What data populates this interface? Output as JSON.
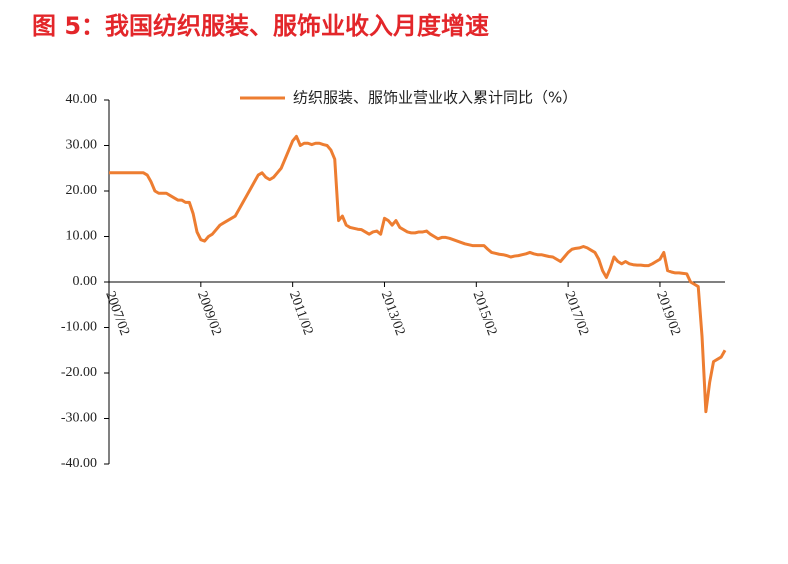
{
  "chart_data": {
    "type": "line",
    "title": "图 5：我国纺织服装、服饰业收入月度增速",
    "x": [
      "2007/02",
      "2007/03",
      "2007/04",
      "2007/05",
      "2007/06",
      "2007/07",
      "2007/08",
      "2007/09",
      "2007/10",
      "2007/11",
      "2007/12",
      "2008/01",
      "2008/02",
      "2008/03",
      "2008/04",
      "2008/05",
      "2008/06",
      "2008/07",
      "2008/08",
      "2008/09",
      "2008/10",
      "2008/11",
      "2008/12",
      "2009/01",
      "2009/02",
      "2009/03",
      "2009/04",
      "2009/05",
      "2009/06",
      "2009/07",
      "2009/08",
      "2009/09",
      "2009/10",
      "2009/11",
      "2009/12",
      "2010/01",
      "2010/02",
      "2010/03",
      "2010/04",
      "2010/05",
      "2010/06",
      "2010/07",
      "2010/08",
      "2010/09",
      "2010/10",
      "2010/11",
      "2010/12",
      "2011/01",
      "2011/02",
      "2011/03",
      "2011/04",
      "2011/05",
      "2011/06",
      "2011/07",
      "2011/08",
      "2011/09",
      "2011/10",
      "2011/11",
      "2011/12",
      "2012/01",
      "2012/02",
      "2012/03",
      "2012/04",
      "2012/05",
      "2012/06",
      "2012/07",
      "2012/08",
      "2012/09",
      "2012/10",
      "2012/11",
      "2012/12",
      "2013/01",
      "2013/02",
      "2013/03",
      "2013/04",
      "2013/05",
      "2013/06",
      "2013/07",
      "2013/08",
      "2013/09",
      "2013/10",
      "2013/11",
      "2013/12",
      "2014/01",
      "2014/02",
      "2014/03",
      "2014/04",
      "2014/05",
      "2014/06",
      "2014/07",
      "2014/08",
      "2014/09",
      "2014/10",
      "2014/11",
      "2014/12",
      "2015/01",
      "2015/02",
      "2015/03",
      "2015/04",
      "2015/05",
      "2015/06",
      "2015/07",
      "2015/08",
      "2015/09",
      "2015/10",
      "2015/11",
      "2015/12",
      "2016/01",
      "2016/02",
      "2016/03",
      "2016/04",
      "2016/05",
      "2016/06",
      "2016/07",
      "2016/08",
      "2016/09",
      "2016/10",
      "2016/11",
      "2016/12",
      "2017/01",
      "2017/02",
      "2017/03",
      "2017/04",
      "2017/05",
      "2017/06",
      "2017/07",
      "2017/08",
      "2017/09",
      "2017/10",
      "2017/11",
      "2017/12",
      "2018/01",
      "2018/02",
      "2018/03",
      "2018/04",
      "2018/05",
      "2018/06",
      "2018/07",
      "2018/08",
      "2018/09",
      "2018/10",
      "2018/11",
      "2018/12",
      "2019/01",
      "2019/02",
      "2019/03",
      "2019/04",
      "2019/05",
      "2019/06",
      "2019/07",
      "2019/08",
      "2019/09",
      "2019/10",
      "2019/11",
      "2019/12",
      "2020/01",
      "2020/02",
      "2020/03",
      "2020/04",
      "2020/05",
      "2020/06",
      "2020/07"
    ],
    "xticks": [
      "2007/02",
      "2009/02",
      "2011/02",
      "2013/02",
      "2015/02",
      "2017/02",
      "2019/02"
    ],
    "series": [
      {
        "name": "纺织服装、服饰业营业收入累计同比（%）",
        "color": "#ed7d31",
        "values": [
          24,
          24,
          24,
          24,
          24,
          24,
          24,
          24,
          24,
          24,
          23.5,
          22,
          20,
          19.5,
          19.5,
          19.5,
          19,
          18.5,
          18,
          18,
          17.5,
          17.5,
          15,
          11,
          9.3,
          9,
          10,
          10.5,
          11.5,
          12.5,
          13,
          13.5,
          14,
          14.5,
          16,
          17.5,
          19,
          20.5,
          22,
          23.5,
          24,
          23,
          22.5,
          23,
          24,
          25,
          27,
          29,
          31,
          32,
          30,
          30.5,
          30.5,
          30.2,
          30.5,
          30.5,
          30.2,
          30,
          29,
          27,
          13.5,
          14.5,
          12.5,
          12,
          11.8,
          11.6,
          11.5,
          11,
          10.5,
          11,
          11.2,
          10.5,
          14,
          13.5,
          12.5,
          13.5,
          12,
          11.5,
          11,
          10.8,
          10.8,
          11,
          11,
          11.2,
          10.5,
          10,
          9.5,
          9.8,
          9.8,
          9.6,
          9.3,
          9,
          8.7,
          8.4,
          8.2,
          8,
          8,
          8,
          8,
          7.2,
          6.5,
          6.3,
          6.1,
          6,
          5.8,
          5.5,
          5.7,
          5.8,
          6,
          6.2,
          6.5,
          6.2,
          6,
          6,
          5.8,
          5.6,
          5.5,
          5,
          4.5,
          5.5,
          6.5,
          7.2,
          7.4,
          7.5,
          7.8,
          7.5,
          7,
          6.5,
          5,
          2.5,
          1,
          3,
          5.5,
          4.5,
          4,
          4.5,
          4,
          3.8,
          3.7,
          3.7,
          3.6,
          3.6,
          4,
          4.5,
          5,
          6.5,
          2.5,
          2.2,
          2,
          2,
          1.9,
          1.8,
          0,
          -0.5,
          -1,
          -12,
          -28.5,
          -22,
          -17.5,
          -17,
          -16.5,
          -15
        ]
      }
    ],
    "ylim": [
      -40,
      40
    ],
    "yticks": [
      {
        "value": -40,
        "label": "-40.00"
      },
      {
        "value": -30,
        "label": "-30.00"
      },
      {
        "value": -20,
        "label": "-20.00"
      },
      {
        "value": -10,
        "label": "-10.00"
      },
      {
        "value": 0,
        "label": "0.00"
      },
      {
        "value": 10,
        "label": "10.00"
      },
      {
        "value": 20,
        "label": "20.00"
      },
      {
        "value": 30,
        "label": "30.00"
      },
      {
        "value": 40,
        "label": "40.00"
      }
    ],
    "legend": "top"
  }
}
